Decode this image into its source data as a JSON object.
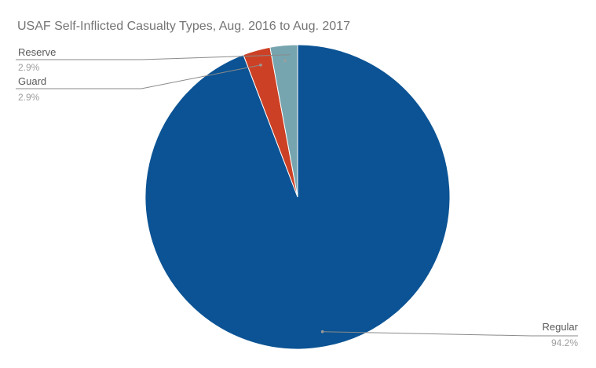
{
  "chart_data": {
    "type": "pie",
    "title": "USAF Self-Inflicted Casualty Types, Aug. 2016 to Aug. 2017",
    "slices": [
      {
        "label": "Regular",
        "value": 94.2,
        "value_label": "94.2%",
        "color": "#0b5394"
      },
      {
        "label": "Guard",
        "value": 2.9,
        "value_label": "2.9%",
        "color": "#cc4125"
      },
      {
        "label": "Reserve",
        "value": 2.9,
        "value_label": "2.9%",
        "color": "#76a5af"
      }
    ],
    "legend": "none",
    "start_angle": "12 o'clock",
    "direction": "clockwise"
  }
}
